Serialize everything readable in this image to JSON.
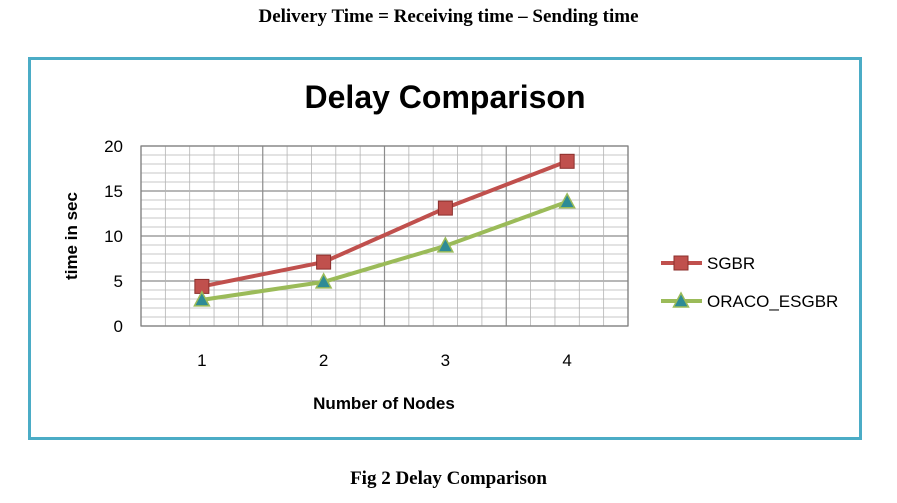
{
  "heading": "Delivery Time = Receiving time – Sending time",
  "caption": "Fig 2 Delay Comparison",
  "colors": {
    "frame_border": "#4bacc6",
    "sgbr": "#c0504d",
    "oraco": "#9bbb59",
    "oraco_marker": "#2e8b96"
  },
  "chart_data": {
    "type": "line",
    "title": "Delay Comparison",
    "xlabel": "Number of Nodes",
    "ylabel": "time in sec",
    "categories": [
      "1",
      "2",
      "3",
      "4"
    ],
    "ylim": [
      0,
      20
    ],
    "yticks": [
      "0",
      "5",
      "10",
      "15",
      "20"
    ],
    "grid": true,
    "legend_position": "right",
    "series": [
      {
        "name": "SGBR",
        "values": [
          4.4,
          7.1,
          13.1,
          18.3
        ],
        "color": "#c0504d",
        "marker": "square"
      },
      {
        "name": "ORACO_ESGBR",
        "values": [
          2.9,
          4.9,
          8.9,
          13.8
        ],
        "color": "#9bbb59",
        "marker": "triangle"
      }
    ]
  }
}
